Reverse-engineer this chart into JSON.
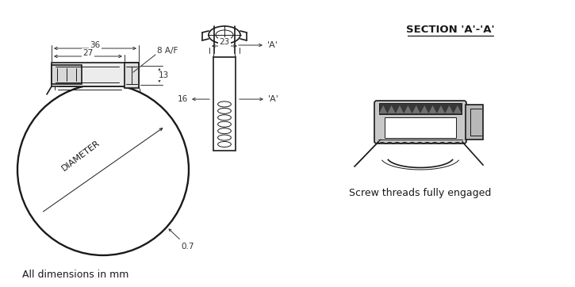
{
  "bg_color": "#ffffff",
  "line_color": "#1a1a1a",
  "dim_color": "#333333",
  "title_section": "SECTION 'A'-'A'",
  "label_all_dim": "All dimensions in mm",
  "label_diameter": "DIAMETER",
  "label_07": "0.7",
  "label_36": "36",
  "label_27": "27",
  "label_8af": "8 A/F",
  "label_13": "13",
  "label_23": "23",
  "label_A1": "'A'",
  "label_A2": "'A'",
  "label_16": "16",
  "label_screw": "Screw threads fully engaged",
  "fig_width": 7.25,
  "fig_height": 3.62,
  "dpi": 100
}
